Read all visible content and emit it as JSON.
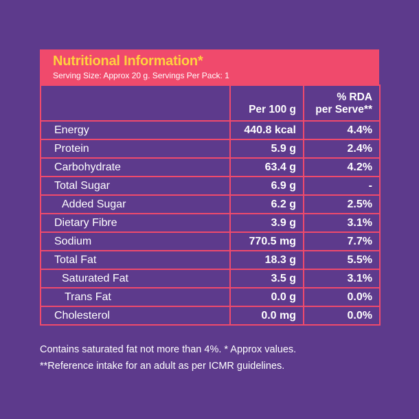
{
  "title": "Nutritional Information*",
  "serving": "Serving Size: Approx 20 g. Servings Per Pack: 1",
  "columns": {
    "per100": "Per 100 g",
    "rda_line1": "% RDA",
    "rda_line2": "per Serve**"
  },
  "rows": [
    {
      "name": "Energy",
      "per100": "440.8 kcal",
      "rda": "4.4%"
    },
    {
      "name": "Protein",
      "per100": "5.9 g",
      "rda": "2.4%"
    },
    {
      "name": "Carbohydrate",
      "per100": "63.4 g",
      "rda": "4.2%"
    },
    {
      "name": "Total Sugar",
      "per100": "6.9 g",
      "rda": "-"
    },
    {
      "name": "Added Sugar",
      "per100": "6.2 g",
      "rda": "2.5%"
    },
    {
      "name": "Dietary Fibre",
      "per100": "3.9 g",
      "rda": "3.1%"
    },
    {
      "name": "Sodium",
      "per100": "770.5 mg",
      "rda": "7.7%"
    },
    {
      "name": "Total Fat",
      "per100": "18.3 g",
      "rda": "5.5%"
    },
    {
      "name": "Saturated Fat",
      "per100": "3.5 g",
      "rda": "3.1%"
    },
    {
      "name": "Trans Fat",
      "per100": "0.0 g",
      "rda": "0.0%"
    },
    {
      "name": "Cholesterol",
      "per100": "0.0 mg",
      "rda": "0.0%"
    }
  ],
  "footnotes": {
    "line1": "Contains saturated fat not more than 4%. * Approx values.",
    "line2": "**Reference intake for an adult as per ICMR guidelines."
  },
  "colors": {
    "background": "#5d3a8c",
    "header": "#f04a6c",
    "title": "#ffd23e"
  }
}
